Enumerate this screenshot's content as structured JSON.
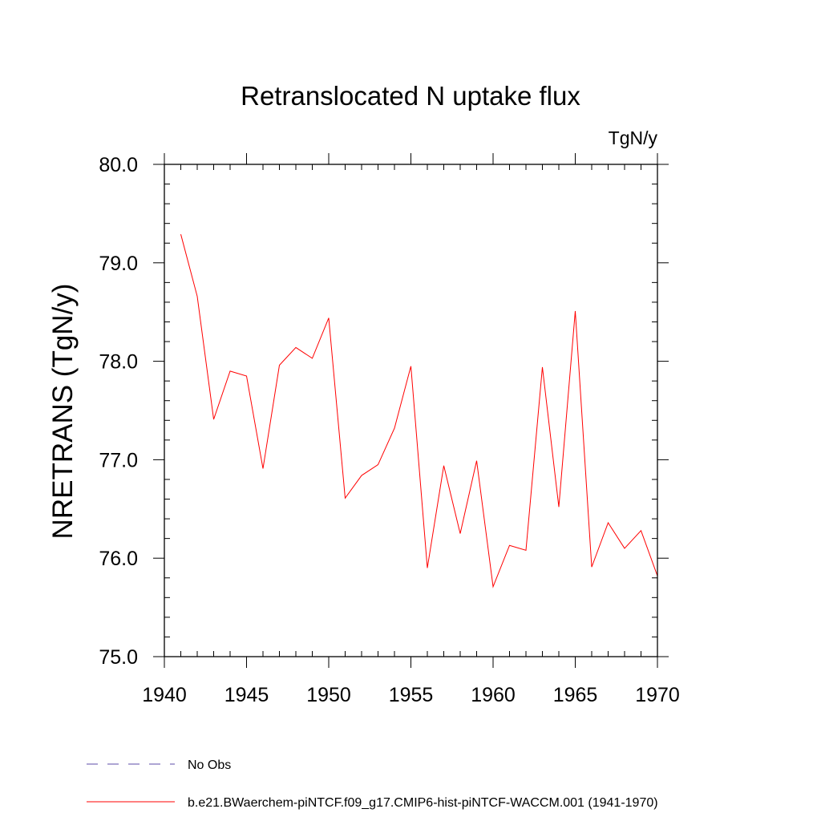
{
  "chart_data": {
    "type": "line",
    "title": "Retranslocated N uptake flux",
    "units": "TgN/y",
    "ylabel": "NRETRANS  (TgN/y)",
    "xlabel": "",
    "xlim": [
      1940,
      1970
    ],
    "ylim": [
      75.0,
      80.0
    ],
    "x_ticks": [
      1940,
      1945,
      1950,
      1955,
      1960,
      1965,
      1970
    ],
    "x_tick_labels": [
      "1940",
      "1945",
      "1950",
      "1955",
      "1960",
      "1965",
      "1970"
    ],
    "y_ticks": [
      75.0,
      76.0,
      77.0,
      78.0,
      79.0,
      80.0
    ],
    "y_tick_labels": [
      "75.0",
      "76.0",
      "77.0",
      "78.0",
      "79.0",
      "80.0"
    ],
    "grid": false,
    "legend_position": "bottom-left",
    "series": [
      {
        "name": "b.e21.BWaerchem-piNTCF.f09_g17.CMIP6-hist-piNTCF-WACCM.001 (1941-1970)",
        "color": "#ff0000",
        "style": "solid",
        "x": [
          1941,
          1942,
          1943,
          1944,
          1945,
          1946,
          1947,
          1948,
          1949,
          1950,
          1951,
          1952,
          1953,
          1954,
          1955,
          1956,
          1957,
          1958,
          1959,
          1960,
          1961,
          1962,
          1963,
          1964,
          1965,
          1966,
          1967,
          1968,
          1969,
          1970
        ],
        "values": [
          79.29,
          78.66,
          77.41,
          77.9,
          77.85,
          76.91,
          77.96,
          78.14,
          78.03,
          78.44,
          76.61,
          76.84,
          76.95,
          77.32,
          77.95,
          75.9,
          76.94,
          76.25,
          76.99,
          75.71,
          76.13,
          76.08,
          77.94,
          76.52,
          78.51,
          75.91,
          76.36,
          76.1,
          76.28,
          75.82
        ]
      }
    ],
    "legend": [
      {
        "label": "No Obs",
        "color": "#5b4ba8",
        "style": "dashed"
      },
      {
        "label": "b.e21.BWaerchem-piNTCF.f09_g17.CMIP6-hist-piNTCF-WACCM.001 (1941-1970)",
        "color": "#ff0000",
        "style": "solid"
      }
    ]
  }
}
